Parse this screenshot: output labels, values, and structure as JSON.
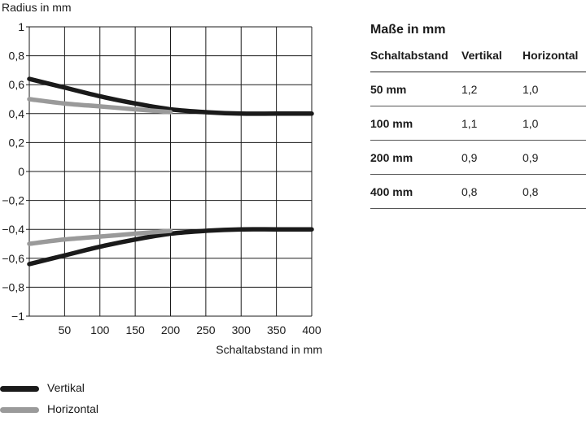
{
  "chart_data": {
    "type": "line",
    "title": "",
    "xlabel": "Schaltabstand in mm",
    "ylabel": "Radius in mm",
    "xlim": [
      0,
      400
    ],
    "ylim": [
      -1,
      1
    ],
    "x_ticks": [
      50,
      100,
      150,
      200,
      250,
      300,
      350,
      400
    ],
    "x_tick_labels": [
      "50",
      "100",
      "150",
      "200",
      "250",
      "300",
      "350",
      "400"
    ],
    "y_ticks": [
      1,
      0.8,
      0.6,
      0.4,
      0.2,
      0,
      -0.2,
      -0.4,
      -0.6,
      -0.8,
      -1
    ],
    "y_tick_labels": [
      "1",
      "0,8",
      "0,6",
      "0,4",
      "0,2",
      "0",
      "−0,2",
      "−0,4",
      "−0,6",
      "−0,8",
      "−1"
    ],
    "grid": true,
    "legend_position": "bottom-left",
    "series": [
      {
        "name": "Vertikal",
        "color": "#1a1a1a",
        "x": [
          0,
          50,
          100,
          150,
          200,
          250,
          300,
          350,
          400
        ],
        "y": [
          0.64,
          0.58,
          0.52,
          0.47,
          0.43,
          0.41,
          0.4,
          0.4,
          0.4
        ]
      },
      {
        "name": "Vertikal",
        "color": "#1a1a1a",
        "x": [
          0,
          50,
          100,
          150,
          200,
          250,
          300,
          350,
          400
        ],
        "y": [
          -0.64,
          -0.58,
          -0.52,
          -0.47,
          -0.43,
          -0.41,
          -0.4,
          -0.4,
          -0.4
        ]
      },
      {
        "name": "Horizontal",
        "color": "#9a9a9a",
        "x": [
          0,
          50,
          100,
          150,
          200
        ],
        "y": [
          0.5,
          0.47,
          0.45,
          0.43,
          0.41
        ]
      },
      {
        "name": "Horizontal",
        "color": "#9a9a9a",
        "x": [
          0,
          50,
          100,
          150,
          200
        ],
        "y": [
          -0.5,
          -0.47,
          -0.45,
          -0.43,
          -0.41
        ]
      }
    ]
  },
  "legend": {
    "items": [
      {
        "label": "Vertikal",
        "color": "#1a1a1a"
      },
      {
        "label": "Horizontal",
        "color": "#9a9a9a"
      }
    ]
  },
  "table": {
    "title": "Maße in mm",
    "headers": [
      "Schaltabstand",
      "Vertikal",
      "Horizontal"
    ],
    "rows": [
      [
        "50 mm",
        "1,2",
        "1,0"
      ],
      [
        "100 mm",
        "1,1",
        "1,0"
      ],
      [
        "200 mm",
        "0,9",
        "0,9"
      ],
      [
        "400 mm",
        "0,8",
        "0,8"
      ]
    ]
  }
}
